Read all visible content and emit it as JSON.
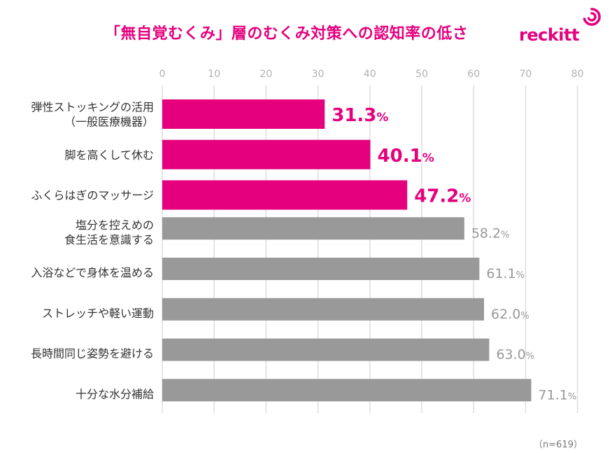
{
  "header": {
    "title": "「無自覚むくみ」層のむくみ対策への認知率の低さ",
    "brand": "reckitt",
    "brand_icon": "reckitt-swirl-icon"
  },
  "colors": {
    "highlight": "#e5007e",
    "neutral": "#999999",
    "grid": "#dddddd",
    "tick": "#b0b0b0"
  },
  "chart_data": {
    "type": "bar",
    "orientation": "horizontal",
    "title": "「無自覚むくみ」層のむくみ対策への認知率の低さ",
    "xlim": [
      0,
      80
    ],
    "xticks": [
      0,
      10,
      20,
      30,
      40,
      50,
      60,
      70,
      80
    ],
    "grid": true,
    "unit": "%",
    "categories": [
      [
        "弾性ストッキングの活用",
        "（一般医療機器）"
      ],
      [
        "脚を高くして休む"
      ],
      [
        "ふくらはぎのマッサージ"
      ],
      [
        "塩分を控えめの",
        "食生活を意識する"
      ],
      [
        "入浴などで身体を温める"
      ],
      [
        "ストレッチや軽い運動"
      ],
      [
        "長時間同じ姿勢を避ける"
      ],
      [
        "十分な水分補給"
      ]
    ],
    "values": [
      31.3,
      40.1,
      47.2,
      58.2,
      61.1,
      62.0,
      63.0,
      71.1
    ],
    "highlighted": [
      true,
      true,
      true,
      false,
      false,
      false,
      false,
      false
    ]
  },
  "footnote": "（n=619）"
}
